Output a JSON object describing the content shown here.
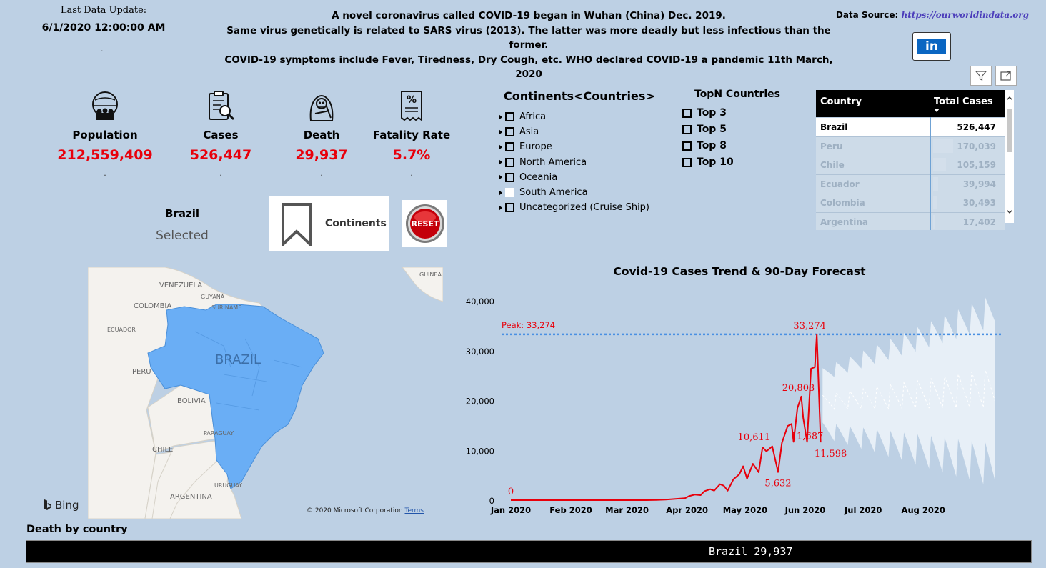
{
  "header": {
    "last_update_label": "Last Data Update:",
    "last_update_value": "6/1/2020 12:00:00 AM",
    "dot": ".",
    "intro_line1": "A novel coronavirus called COVID-19 began in Wuhan (China) Dec. 2019.",
    "intro_line2": "Same virus genetically is related to SARS virus (2013). The latter was more deadly but less infectious than the former.",
    "intro_line3": "COVID-19 symptoms include Fever, Tiredness, Dry Cough, etc. WHO declared COVID-19 a pandemic 11th March, 2020",
    "source_label": "Data Source:",
    "source_link": "https://ourworldindata.org",
    "linkedin_text": "in"
  },
  "kpis": [
    {
      "icon": "population-icon",
      "label": "Population",
      "value": "212,559,409"
    },
    {
      "icon": "cases-clipboard-icon",
      "label": "Cases",
      "value": "526,447"
    },
    {
      "icon": "death-skull-icon",
      "label": "Death",
      "value": "29,937"
    },
    {
      "icon": "percent-document-icon",
      "label": "Fatality Rate",
      "value": "5.7%"
    }
  ],
  "selection": {
    "country": "Brazil",
    "label": "Selected"
  },
  "buttons": {
    "bookmark_label": "Continents",
    "reset_label": "RESET"
  },
  "continents": {
    "title": "Continents<Countries>",
    "items": [
      {
        "label": "Africa",
        "checked": false
      },
      {
        "label": "Asia",
        "checked": false
      },
      {
        "label": "Europe",
        "checked": false
      },
      {
        "label": "North America",
        "checked": false
      },
      {
        "label": "Oceania",
        "checked": false
      },
      {
        "label": "South America",
        "checked": true
      },
      {
        "label": "Uncategorized (Cruise Ship)",
        "checked": false
      }
    ]
  },
  "topn": {
    "title": "TopN Countries",
    "items": [
      "Top 3",
      "Top 5",
      "Top 8",
      "Top 10"
    ]
  },
  "table": {
    "headers": [
      "Country",
      "Total Cases"
    ],
    "rows": [
      {
        "country": "Brazil",
        "cases": "526,447",
        "value": 526447
      },
      {
        "country": "Peru",
        "cases": "170,039",
        "value": 170039
      },
      {
        "country": "Chile",
        "cases": "105,159",
        "value": 105159
      },
      {
        "country": "Ecuador",
        "cases": "39,994",
        "value": 39994
      },
      {
        "country": "Colombia",
        "cases": "30,493",
        "value": 30493
      },
      {
        "country": "Argentina",
        "cases": "17,402",
        "value": 17402
      }
    ]
  },
  "map": {
    "highlight_label": "BRAZIL",
    "labels": [
      "VENEZUELA",
      "GUYANA",
      "SURINAME",
      "COLOMBIA",
      "ECUADOR",
      "PERU",
      "BOLIVIA",
      "PARAGUAY",
      "CHILE",
      "URUGUAY",
      "ARGENTINA",
      "GUINEA"
    ],
    "bing_label": "Bing",
    "copyright": "© 2020 Microsoft Corporation",
    "terms": "Terms",
    "highlight_color": "#6aaef5"
  },
  "chart_data": {
    "type": "line",
    "title": "Covid-19 Cases Trend & 90-Day Forecast",
    "x_ticks": [
      "Jan 2020",
      "Feb 2020",
      "Mar 2020",
      "Apr 2020",
      "May 2020",
      "Jun 2020",
      "Jul 2020",
      "Aug 2020"
    ],
    "y_ticks": [
      "0",
      "10,000",
      "20,000",
      "30,000",
      "40,000"
    ],
    "ylim": [
      0,
      40000
    ],
    "reference_line": {
      "label": "Peak: 33,274",
      "value": 33274
    },
    "series": [
      {
        "color": "#e8000b",
        "points": [
          [
            0,
            0
          ],
          [
            10,
            0
          ],
          [
            20,
            0
          ],
          [
            30,
            0
          ],
          [
            40,
            0
          ],
          [
            50,
            0
          ],
          [
            60,
            0
          ],
          [
            70,
            2
          ],
          [
            75,
            30
          ],
          [
            80,
            100
          ],
          [
            85,
            250
          ],
          [
            90,
            400
          ],
          [
            92,
            800
          ],
          [
            95,
            1100
          ],
          [
            98,
            1000
          ],
          [
            100,
            1800
          ],
          [
            103,
            2200
          ],
          [
            105,
            1900
          ],
          [
            108,
            3200
          ],
          [
            110,
            2900
          ],
          [
            112,
            1900
          ],
          [
            115,
            4200
          ],
          [
            118,
            5200
          ],
          [
            120,
            6800
          ],
          [
            122,
            4300
          ],
          [
            125,
            7300
          ],
          [
            128,
            5600
          ],
          [
            130,
            10611
          ],
          [
            132,
            9800
          ],
          [
            135,
            10800
          ],
          [
            138,
            5632
          ],
          [
            140,
            11500
          ],
          [
            143,
            14900
          ],
          [
            145,
            15300
          ],
          [
            146,
            11700
          ],
          [
            148,
            18500
          ],
          [
            150,
            20803
          ],
          [
            151,
            16500
          ],
          [
            153,
            11687
          ],
          [
            155,
            26400
          ],
          [
            157,
            26700
          ],
          [
            158,
            33274
          ],
          [
            160,
            11598
          ]
        ],
        "point_labels": [
          {
            "x": 0,
            "y": 0,
            "text": "0"
          },
          {
            "x": 130,
            "y": 10611,
            "text": "10,611"
          },
          {
            "x": 138,
            "y": 5632,
            "text": "5,632"
          },
          {
            "x": 150,
            "y": 20803,
            "text": "20,803"
          },
          {
            "x": 153,
            "y": 11687,
            "text": "11,687"
          },
          {
            "x": 158,
            "y": 33274,
            "text": "33,274"
          },
          {
            "x": 160,
            "y": 11598,
            "text": "11,598"
          }
        ]
      }
    ],
    "forecast": {
      "color": "#e9f0f8",
      "days": [
        161,
        250
      ],
      "upper_start": 26500,
      "upper_end": 41500,
      "lower_start": 12000,
      "lower_end": 1000,
      "mid_start": 20000,
      "mid_end": 24000
    }
  },
  "death_by_country": {
    "title": "Death by country",
    "bar_text": "Brazil 29,937",
    "bar_value": 29937
  }
}
